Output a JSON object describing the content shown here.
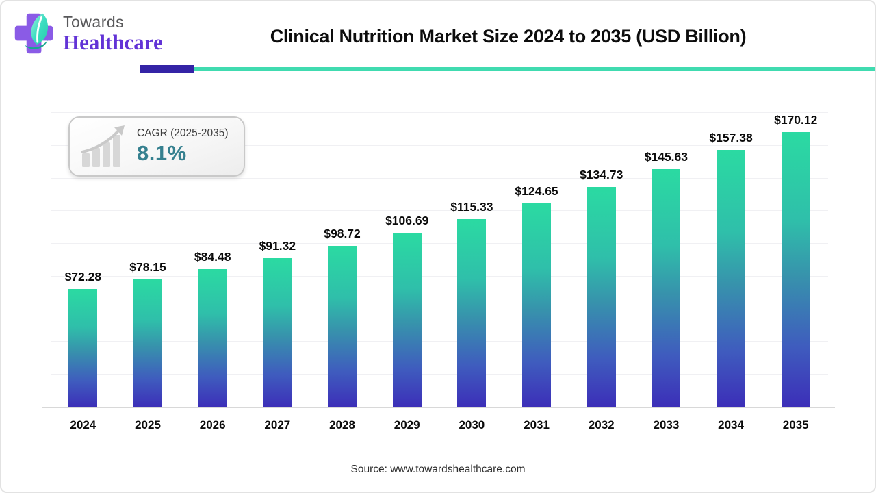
{
  "brand": {
    "name_top": "Towards",
    "name_bottom": "Healthcare"
  },
  "header": {
    "title": "Clinical Nutrition Market Size 2024 to 2035 (USD Billion)"
  },
  "cagr_badge": {
    "label": "CAGR (2025-2035)",
    "value": "8.1%"
  },
  "chart_data": {
    "type": "bar",
    "title": "Clinical Nutrition Market Size 2024 to 2035 (USD Billion)",
    "categories": [
      "2024",
      "2025",
      "2026",
      "2027",
      "2028",
      "2029",
      "2030",
      "2031",
      "2032",
      "2033",
      "2034",
      "2035"
    ],
    "values": [
      72.28,
      78.15,
      84.48,
      91.32,
      98.72,
      106.69,
      115.33,
      124.65,
      134.73,
      145.63,
      157.38,
      170.12
    ],
    "value_labels": [
      "$72.28",
      "$78.15",
      "$84.48",
      "$91.32",
      "$98.72",
      "$106.69",
      "$115.33",
      "$124.65",
      "$134.73",
      "$145.63",
      "$157.38",
      "$170.12"
    ],
    "unit": "USD Billion",
    "xlabel": "",
    "ylabel": "",
    "ylim": [
      0,
      180
    ],
    "gridline_step": 20,
    "grid": "horizontal",
    "legend": "none",
    "bar_color_top": "#2bdaa2",
    "bar_color_bottom": "#3c2eb8"
  },
  "footer": {
    "source": "Source: www.towardshealthcare.com"
  },
  "colors": {
    "accent_indigo": "#3423a6",
    "accent_teal": "#40dbb0",
    "cagr_value_teal": "#35808f",
    "logo_purple": "#8a5be6",
    "logo_leaf_teal": "#3addc0"
  }
}
